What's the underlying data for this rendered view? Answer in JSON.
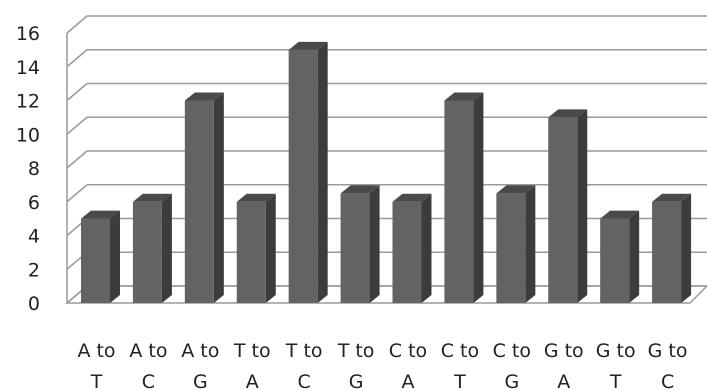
{
  "chart_data": {
    "type": "bar",
    "style": "3d",
    "categories": [
      [
        "A to",
        "T"
      ],
      [
        "A to",
        "C"
      ],
      [
        "A to",
        "G"
      ],
      [
        "T to",
        "A"
      ],
      [
        "T to",
        "C"
      ],
      [
        "T to",
        "G"
      ],
      [
        "C to",
        "A"
      ],
      [
        "C to",
        "T"
      ],
      [
        "C to",
        "G"
      ],
      [
        "G to",
        "A"
      ],
      [
        "G to",
        "T"
      ],
      [
        "G to",
        "C"
      ]
    ],
    "values": [
      5,
      6,
      12,
      6,
      15,
      6.5,
      6,
      12,
      6.5,
      11,
      5,
      6
    ],
    "ylim": [
      0,
      16
    ],
    "yticks": [
      0,
      2,
      4,
      6,
      8,
      10,
      12,
      14,
      16
    ],
    "grid": true,
    "legend": "none",
    "title": "",
    "xlabel": "",
    "ylabel": "",
    "colors": {
      "bar_front": "#636363",
      "bar_side": "#3c3c3c",
      "bar_top": "#4a4a4a",
      "grid": "#9a9a9a",
      "floor": "#d6d6d6",
      "text": "#222222"
    }
  }
}
